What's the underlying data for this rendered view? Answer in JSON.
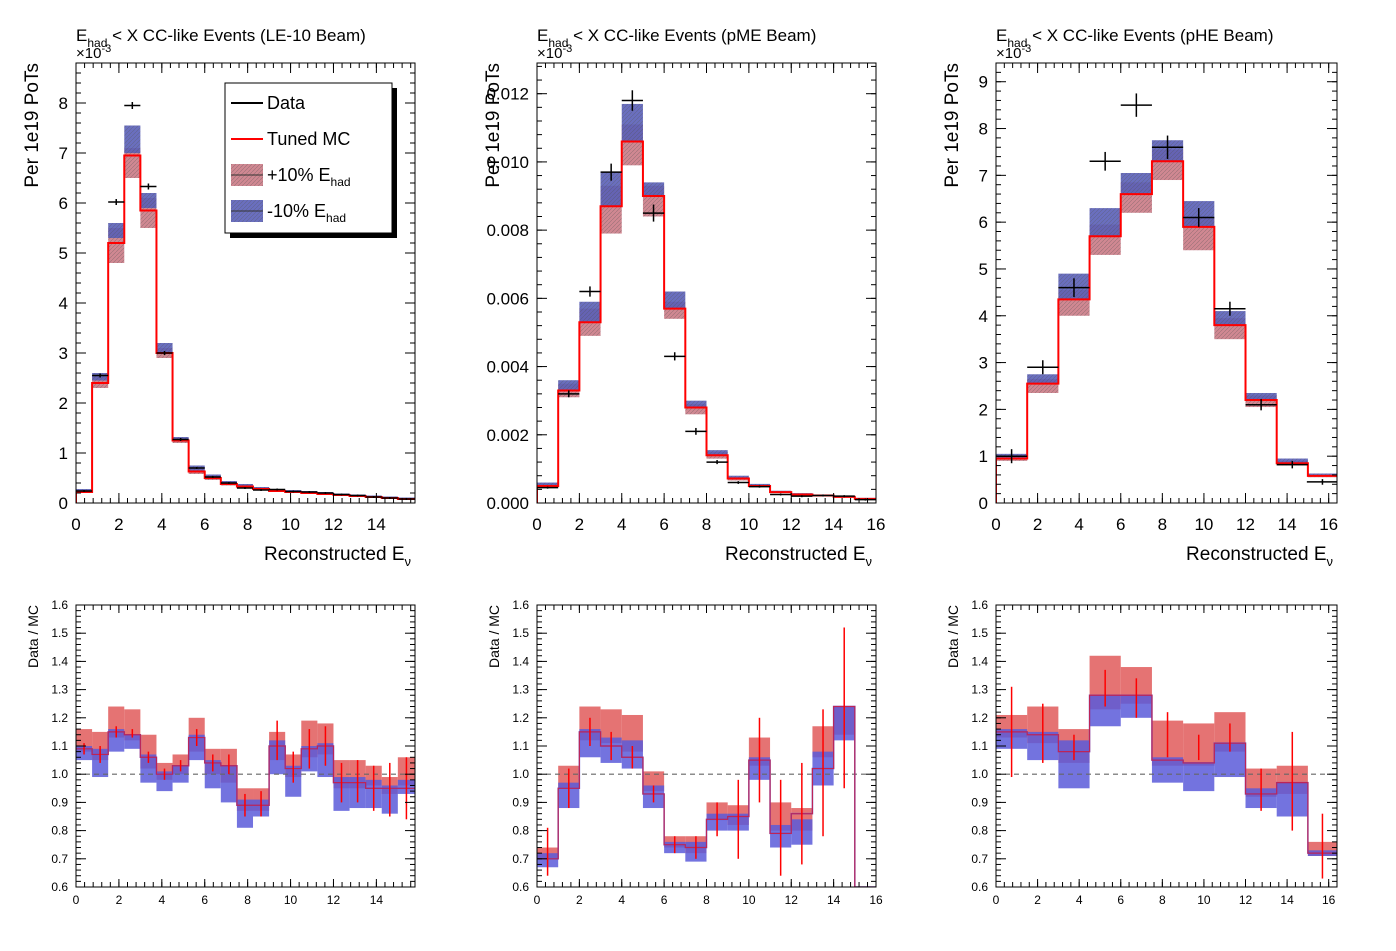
{
  "colors": {
    "data": "#000000",
    "mc": "#ff0000",
    "band_plus": "#c8737f",
    "band_minus": "#5a5fb8",
    "ratio_plus": "#e05a5a",
    "ratio_minus": "#5b5bd9",
    "unity_line": "#666666"
  },
  "legend": {
    "entries": [
      {
        "label": "Data",
        "style": "line-black"
      },
      {
        "label": "Tuned MC",
        "style": "line-red"
      },
      {
        "label": "+10% E",
        "sub": "had",
        "style": "band-red"
      },
      {
        "label": "-10% E",
        "sub": "had",
        "style": "band-blue"
      }
    ]
  },
  "chart_data": [
    {
      "type": "line",
      "panel": "top-left",
      "title_main": "E",
      "title_sub": "had",
      "title_rest": " < X CC-like Events (LE-10 Beam)",
      "ylabel": "Per 1e19 PoTs",
      "xlabel_main": "Reconstructed E",
      "xlabel_sub": "ν",
      "exponent_label": "×10",
      "exponent_sup": "-3",
      "xlim": [
        0,
        15.8
      ],
      "ylim": [
        0,
        8.8
      ],
      "xticks": [
        0,
        2,
        4,
        6,
        8,
        10,
        12,
        14
      ],
      "yticks": [
        0,
        1,
        2,
        3,
        4,
        5,
        6,
        7,
        8
      ],
      "edges": [
        0,
        0.75,
        1.5,
        2.25,
        3.0,
        3.75,
        4.5,
        5.25,
        6.0,
        6.75,
        7.5,
        8.25,
        9.0,
        9.75,
        10.5,
        11.25,
        12.0,
        12.75,
        13.5,
        14.25,
        15.0,
        15.8
      ],
      "mc": [
        0.22,
        2.4,
        5.2,
        6.95,
        5.85,
        3.0,
        1.25,
        0.63,
        0.5,
        0.38,
        0.33,
        0.28,
        0.24,
        0.22,
        0.2,
        0.18,
        0.16,
        0.14,
        0.12,
        0.1,
        0.08
      ],
      "band_plus_lo": [
        0.2,
        2.3,
        4.8,
        6.5,
        5.5,
        2.9,
        1.2,
        0.58,
        0.46,
        0.35,
        0.3,
        0.26,
        0.22,
        0.2,
        0.18,
        0.16,
        0.14,
        0.12,
        0.1,
        0.09,
        0.07
      ],
      "band_plus_hi": [
        0.26,
        2.55,
        5.5,
        7.1,
        6.1,
        3.1,
        1.3,
        0.72,
        0.55,
        0.42,
        0.37,
        0.31,
        0.27,
        0.25,
        0.23,
        0.21,
        0.18,
        0.16,
        0.14,
        0.12,
        0.1
      ],
      "band_minus_lo": [
        0.22,
        2.45,
        5.3,
        7.0,
        5.9,
        3.0,
        1.25,
        0.65,
        0.5,
        0.39,
        0.33,
        0.28,
        0.24,
        0.22,
        0.2,
        0.18,
        0.16,
        0.14,
        0.12,
        0.1,
        0.08
      ],
      "band_minus_hi": [
        0.28,
        2.6,
        5.6,
        7.55,
        6.2,
        3.2,
        1.32,
        0.75,
        0.57,
        0.44,
        0.38,
        0.32,
        0.28,
        0.26,
        0.24,
        0.22,
        0.19,
        0.17,
        0.15,
        0.13,
        0.11
      ],
      "data_x": [
        0.375,
        1.125,
        1.875,
        2.625,
        3.375,
        4.125,
        4.875,
        5.625,
        6.375,
        7.125,
        7.875,
        8.625,
        9.375,
        10.125,
        10.875,
        11.625,
        12.375,
        13.125,
        13.875,
        14.625,
        15.4
      ],
      "data_y": [
        0.24,
        2.55,
        6.02,
        7.95,
        6.33,
        3.0,
        1.27,
        0.7,
        0.52,
        0.4,
        0.3,
        0.26,
        0.27,
        0.23,
        0.22,
        0.2,
        0.17,
        0.15,
        0.12,
        0.1,
        0.08
      ],
      "data_xerr": 0.375,
      "data_yerr": [
        0.02,
        0.04,
        0.06,
        0.07,
        0.06,
        0.04,
        0.03,
        0.02,
        0.02,
        0.02,
        0.02,
        0.02,
        0.02,
        0.02,
        0.02,
        0.02,
        0.02,
        0.02,
        0.02,
        0.02,
        0.02
      ]
    },
    {
      "type": "line",
      "panel": "top-middle",
      "title_main": "E",
      "title_sub": "had",
      "title_rest": " < X CC-like Events (pME Beam)",
      "ylabel": "Per 1e19 PoTs",
      "xlabel_main": "Reconstructed E",
      "xlabel_sub": "ν",
      "exponent_label": "×10",
      "exponent_sup": "-3",
      "xlim": [
        0,
        16
      ],
      "ylim": [
        0,
        0.0129
      ],
      "xticks": [
        0,
        2,
        4,
        6,
        8,
        10,
        12,
        14,
        16
      ],
      "yticks": [
        0.0,
        0.002,
        0.004,
        0.006,
        0.008,
        0.01,
        0.012
      ],
      "ytick_labels": [
        "0.000",
        "0.002",
        "0.004",
        "0.006",
        "0.008",
        "0.010",
        "0.012"
      ],
      "edges": [
        0,
        1,
        2,
        3,
        4,
        5,
        6,
        7,
        8,
        9,
        10,
        11,
        12,
        13,
        14,
        15,
        16
      ],
      "mc": [
        0.0005,
        0.0033,
        0.0053,
        0.0087,
        0.0106,
        0.009,
        0.0057,
        0.0028,
        0.0014,
        0.00072,
        0.0005,
        0.00032,
        0.00025,
        0.00022,
        0.00018,
        0.00012
      ],
      "band_plus_lo": [
        0.00045,
        0.0031,
        0.0049,
        0.0079,
        0.0099,
        0.0084,
        0.0054,
        0.0026,
        0.0013,
        0.00066,
        0.00046,
        0.0003,
        0.00023,
        0.0002,
        0.00016,
        0.00011
      ],
      "band_plus_hi": [
        0.00058,
        0.0035,
        0.0057,
        0.0093,
        0.0111,
        0.0093,
        0.0059,
        0.0029,
        0.0015,
        0.00076,
        0.00054,
        0.00035,
        0.00028,
        0.00024,
        0.0002,
        0.00014
      ],
      "band_minus_lo": [
        0.0005,
        0.0033,
        0.0053,
        0.0087,
        0.0106,
        0.009,
        0.0057,
        0.0028,
        0.0014,
        0.00072,
        0.0005,
        0.00032,
        0.00025,
        0.00022,
        0.00018,
        0.00012
      ],
      "band_minus_hi": [
        0.0006,
        0.0036,
        0.0059,
        0.0097,
        0.0117,
        0.0094,
        0.0062,
        0.003,
        0.00155,
        0.0008,
        0.00056,
        0.00036,
        0.00029,
        0.00025,
        0.00021,
        0.00015
      ],
      "data_x": [
        0.5,
        1.5,
        2.5,
        3.5,
        4.5,
        5.5,
        6.5,
        7.5,
        8.5,
        9.5,
        10.5,
        11.5,
        12.5,
        13.5,
        14.5,
        15.5
      ],
      "data_y": [
        0.00045,
        0.0032,
        0.0062,
        0.0097,
        0.0118,
        0.0085,
        0.0043,
        0.0021,
        0.0012,
        0.0006,
        0.00048,
        0.00025,
        0.0002,
        0.00022,
        0.0002,
        0.0001
      ],
      "data_xerr": 0.5,
      "data_yerr": [
        3e-05,
        0.0001,
        0.00015,
        0.00025,
        0.0003,
        0.00025,
        0.00012,
        0.0001,
        6e-05,
        4e-05,
        3e-05,
        3e-05,
        3e-05,
        3e-05,
        3e-05,
        3e-05
      ]
    },
    {
      "type": "line",
      "panel": "top-right",
      "title_main": "E",
      "title_sub": "had",
      "title_rest": " < X CC-like Events (pHE Beam)",
      "ylabel": "Per 1e19 PoTs",
      "xlabel_main": "Reconstructed E",
      "xlabel_sub": "ν",
      "exponent_label": "×10",
      "exponent_sup": "-3",
      "xlim": [
        0,
        16.4
      ],
      "ylim": [
        0,
        9.4
      ],
      "xticks": [
        0,
        2,
        4,
        6,
        8,
        10,
        12,
        14,
        16
      ],
      "yticks": [
        0,
        1,
        2,
        3,
        4,
        5,
        6,
        7,
        8,
        9
      ],
      "edges": [
        0,
        1.5,
        3.0,
        4.5,
        6.0,
        7.5,
        9.0,
        10.5,
        12.0,
        13.5,
        15.0,
        16.4
      ],
      "mc": [
        0.95,
        2.55,
        4.35,
        5.7,
        6.6,
        7.3,
        5.9,
        3.8,
        2.2,
        0.85,
        0.58
      ],
      "band_plus_lo": [
        0.9,
        2.35,
        4.0,
        5.3,
        6.2,
        6.9,
        5.4,
        3.5,
        2.05,
        0.8,
        0.55
      ],
      "band_plus_hi": [
        1.0,
        2.65,
        4.55,
        5.95,
        6.85,
        7.55,
        6.1,
        3.95,
        2.3,
        0.9,
        0.6
      ],
      "band_minus_lo": [
        0.95,
        2.55,
        4.35,
        5.7,
        6.6,
        7.3,
        5.9,
        3.8,
        2.2,
        0.85,
        0.58
      ],
      "band_minus_hi": [
        1.05,
        2.75,
        4.9,
        6.3,
        7.05,
        7.75,
        6.45,
        4.1,
        2.35,
        0.95,
        0.63
      ],
      "data_x": [
        0.75,
        2.25,
        3.75,
        5.25,
        6.75,
        8.25,
        9.75,
        11.25,
        12.75,
        14.25,
        15.7
      ],
      "data_y": [
        1.0,
        2.9,
        4.6,
        7.3,
        8.5,
        7.6,
        6.1,
        4.15,
        2.1,
        0.82,
        0.45
      ],
      "data_xerr": 0.75,
      "data_yerr": [
        0.15,
        0.15,
        0.2,
        0.2,
        0.25,
        0.25,
        0.2,
        0.15,
        0.12,
        0.08,
        0.06
      ]
    },
    {
      "type": "line",
      "panel": "bottom-left",
      "ylabel": "Data / MC",
      "xlim": [
        0,
        15.8
      ],
      "ylim": [
        0.6,
        1.6
      ],
      "xticks": [
        0,
        2,
        4,
        6,
        8,
        10,
        12,
        14
      ],
      "yticks": [
        0.6,
        0.7,
        0.8,
        0.9,
        1.0,
        1.1,
        1.2,
        1.3,
        1.4,
        1.5,
        1.6
      ],
      "ytick_labels": [
        "0.6",
        "0.7",
        "0.8",
        "0.9",
        "1.0",
        "1.1",
        "1.2",
        "1.3",
        "1.4",
        "1.5",
        "1.6"
      ],
      "unity": 1.0,
      "edges": [
        0,
        0.75,
        1.5,
        2.25,
        3.0,
        3.75,
        4.5,
        5.25,
        6.0,
        6.75,
        7.5,
        8.25,
        9.0,
        9.75,
        10.5,
        11.25,
        12.0,
        12.75,
        13.5,
        14.25,
        15.0,
        15.8
      ],
      "red_hi": [
        1.16,
        1.15,
        1.24,
        1.23,
        1.14,
        1.04,
        1.07,
        1.2,
        1.09,
        1.09,
        0.95,
        0.95,
        1.15,
        1.07,
        1.19,
        1.18,
        1.05,
        1.05,
        1.03,
        0.99,
        1.06
      ],
      "red_lo": [
        1.08,
        1.05,
        1.13,
        1.12,
        1.02,
        0.98,
        1.0,
        1.08,
        1.0,
        0.97,
        0.87,
        0.87,
        1.05,
        0.99,
        1.06,
        1.07,
        0.95,
        0.95,
        0.96,
        0.93,
        0.96
      ],
      "blue_hi": [
        1.1,
        1.09,
        1.16,
        1.14,
        1.07,
        1.01,
        1.03,
        1.14,
        1.05,
        1.03,
        0.91,
        0.91,
        1.12,
        1.03,
        1.1,
        1.11,
        0.99,
        0.99,
        0.98,
        0.96,
        0.98
      ],
      "blue_lo": [
        1.05,
        0.99,
        1.08,
        1.09,
        0.97,
        0.94,
        0.97,
        1.05,
        0.95,
        0.9,
        0.81,
        0.85,
        1.0,
        0.92,
        1.01,
        0.99,
        0.87,
        0.88,
        0.88,
        0.86,
        0.93
      ],
      "mc_ratio": [
        1.09,
        1.07,
        1.15,
        1.14,
        1.06,
        1.0,
        1.03,
        1.13,
        1.04,
        1.03,
        0.89,
        0.89,
        1.1,
        1.02,
        1.09,
        1.1,
        0.97,
        0.97,
        0.95,
        0.95,
        0.95
      ],
      "err_x": [
        0.375,
        1.125,
        1.875,
        2.625,
        3.375,
        4.125,
        4.875,
        5.625,
        6.375,
        7.125,
        7.875,
        8.625,
        9.375,
        10.125,
        10.875,
        11.625,
        12.375,
        13.125,
        13.875,
        14.625,
        15.4
      ],
      "err_lo": [
        1.07,
        1.04,
        1.13,
        1.13,
        1.04,
        0.98,
        1.01,
        1.1,
        1.01,
        1.0,
        0.85,
        0.85,
        1.05,
        0.97,
        1.02,
        1.03,
        0.9,
        0.9,
        0.87,
        0.85,
        0.84
      ],
      "err_hi": [
        1.11,
        1.1,
        1.17,
        1.16,
        1.08,
        1.02,
        1.05,
        1.16,
        1.07,
        1.07,
        0.93,
        0.94,
        1.19,
        1.08,
        1.16,
        1.17,
        1.04,
        1.05,
        1.03,
        1.04,
        1.06
      ]
    },
    {
      "type": "line",
      "panel": "bottom-middle",
      "ylabel": "Data / MC",
      "xlim": [
        0,
        16
      ],
      "ylim": [
        0.6,
        1.6
      ],
      "xticks": [
        0,
        2,
        4,
        6,
        8,
        10,
        12,
        14,
        16
      ],
      "yticks": [
        0.6,
        0.7,
        0.8,
        0.9,
        1.0,
        1.1,
        1.2,
        1.3,
        1.4,
        1.5,
        1.6
      ],
      "ytick_labels": [
        "0.6",
        "0.7",
        "0.8",
        "0.9",
        "1.0",
        "1.1",
        "1.2",
        "1.3",
        "1.4",
        "1.5",
        "1.6"
      ],
      "unity": 1.0,
      "edges": [
        0,
        1,
        2,
        3,
        4,
        5,
        6,
        7,
        8,
        9,
        10,
        11,
        12,
        13,
        14,
        15,
        16
      ],
      "red_hi": [
        0.74,
        1.03,
        1.24,
        1.23,
        1.21,
        1.01,
        0.78,
        0.78,
        0.9,
        0.89,
        1.13,
        0.9,
        0.88,
        1.17,
        1.24,
        0.6
      ],
      "red_lo": [
        0.7,
        0.95,
        1.12,
        1.11,
        1.08,
        0.94,
        0.74,
        0.72,
        0.84,
        0.82,
        1.03,
        0.8,
        0.8,
        1.06,
        1.14,
        0.6
      ],
      "blue_hi": [
        0.72,
        0.97,
        1.16,
        1.13,
        1.12,
        0.96,
        0.76,
        0.76,
        0.86,
        0.86,
        1.06,
        0.82,
        0.84,
        1.08,
        1.24,
        0.6
      ],
      "blue_lo": [
        0.67,
        0.88,
        1.06,
        1.04,
        1.02,
        0.88,
        0.72,
        0.69,
        0.8,
        0.8,
        0.98,
        0.74,
        0.75,
        0.96,
        1.12,
        0.6
      ],
      "mc_ratio": [
        0.7,
        0.95,
        1.15,
        1.1,
        1.06,
        0.93,
        0.75,
        0.74,
        0.84,
        0.85,
        1.05,
        0.79,
        0.86,
        1.02,
        1.24,
        0.6
      ],
      "err_x": [
        0.5,
        1.5,
        2.5,
        3.5,
        4.5,
        5.5,
        6.5,
        7.5,
        8.5,
        9.5,
        10.5,
        11.5,
        12.5,
        13.5,
        14.5,
        15.5
      ],
      "err_lo": [
        0.64,
        0.88,
        1.1,
        1.05,
        1.02,
        0.9,
        0.72,
        0.7,
        0.78,
        0.7,
        0.9,
        0.64,
        0.68,
        0.78,
        0.95,
        0.6
      ],
      "err_hi": [
        0.81,
        1.02,
        1.2,
        1.15,
        1.1,
        0.96,
        0.78,
        0.78,
        0.9,
        0.98,
        1.2,
        0.98,
        1.04,
        1.23,
        1.52,
        0.6
      ]
    },
    {
      "type": "line",
      "panel": "bottom-right",
      "ylabel": "Data / MC",
      "xlim": [
        0,
        16.4
      ],
      "ylim": [
        0.6,
        1.6
      ],
      "xticks": [
        0,
        2,
        4,
        6,
        8,
        10,
        12,
        14,
        16
      ],
      "yticks": [
        0.6,
        0.7,
        0.8,
        0.9,
        1.0,
        1.1,
        1.2,
        1.3,
        1.4,
        1.5,
        1.6
      ],
      "ytick_labels": [
        "0.6",
        "0.7",
        "0.8",
        "0.9",
        "1.0",
        "1.1",
        "1.2",
        "1.3",
        "1.4",
        "1.5",
        "1.6"
      ],
      "unity": 1.0,
      "edges": [
        0,
        1.5,
        3.0,
        4.5,
        6.0,
        7.5,
        9.0,
        10.5,
        12.0,
        13.5,
        15.0,
        16.4
      ],
      "red_hi": [
        1.21,
        1.24,
        1.16,
        1.42,
        1.38,
        1.19,
        1.18,
        1.22,
        1.02,
        1.03,
        0.76
      ],
      "red_lo": [
        1.13,
        1.11,
        1.04,
        1.23,
        1.25,
        1.03,
        1.03,
        1.08,
        0.92,
        0.93,
        0.71
      ],
      "blue_hi": [
        1.16,
        1.15,
        1.12,
        1.28,
        1.28,
        1.06,
        1.04,
        1.11,
        0.95,
        0.97,
        0.73
      ],
      "blue_lo": [
        1.09,
        1.05,
        0.95,
        1.17,
        1.2,
        0.97,
        0.94,
        0.99,
        0.88,
        0.85,
        0.71
      ],
      "mc_ratio": [
        1.15,
        1.14,
        1.08,
        1.28,
        1.28,
        1.05,
        1.04,
        1.11,
        0.93,
        0.97,
        0.72
      ],
      "err_x": [
        0.75,
        2.25,
        3.75,
        5.25,
        6.75,
        8.25,
        9.75,
        11.25,
        12.75,
        14.25,
        15.7
      ],
      "err_lo": [
        0.99,
        1.04,
        1.05,
        1.24,
        1.2,
        1.06,
        1.05,
        1.08,
        0.87,
        0.8,
        0.63
      ],
      "err_hi": [
        1.31,
        1.25,
        1.14,
        1.37,
        1.34,
        1.22,
        1.14,
        1.18,
        1.02,
        1.15,
        0.86
      ]
    }
  ]
}
